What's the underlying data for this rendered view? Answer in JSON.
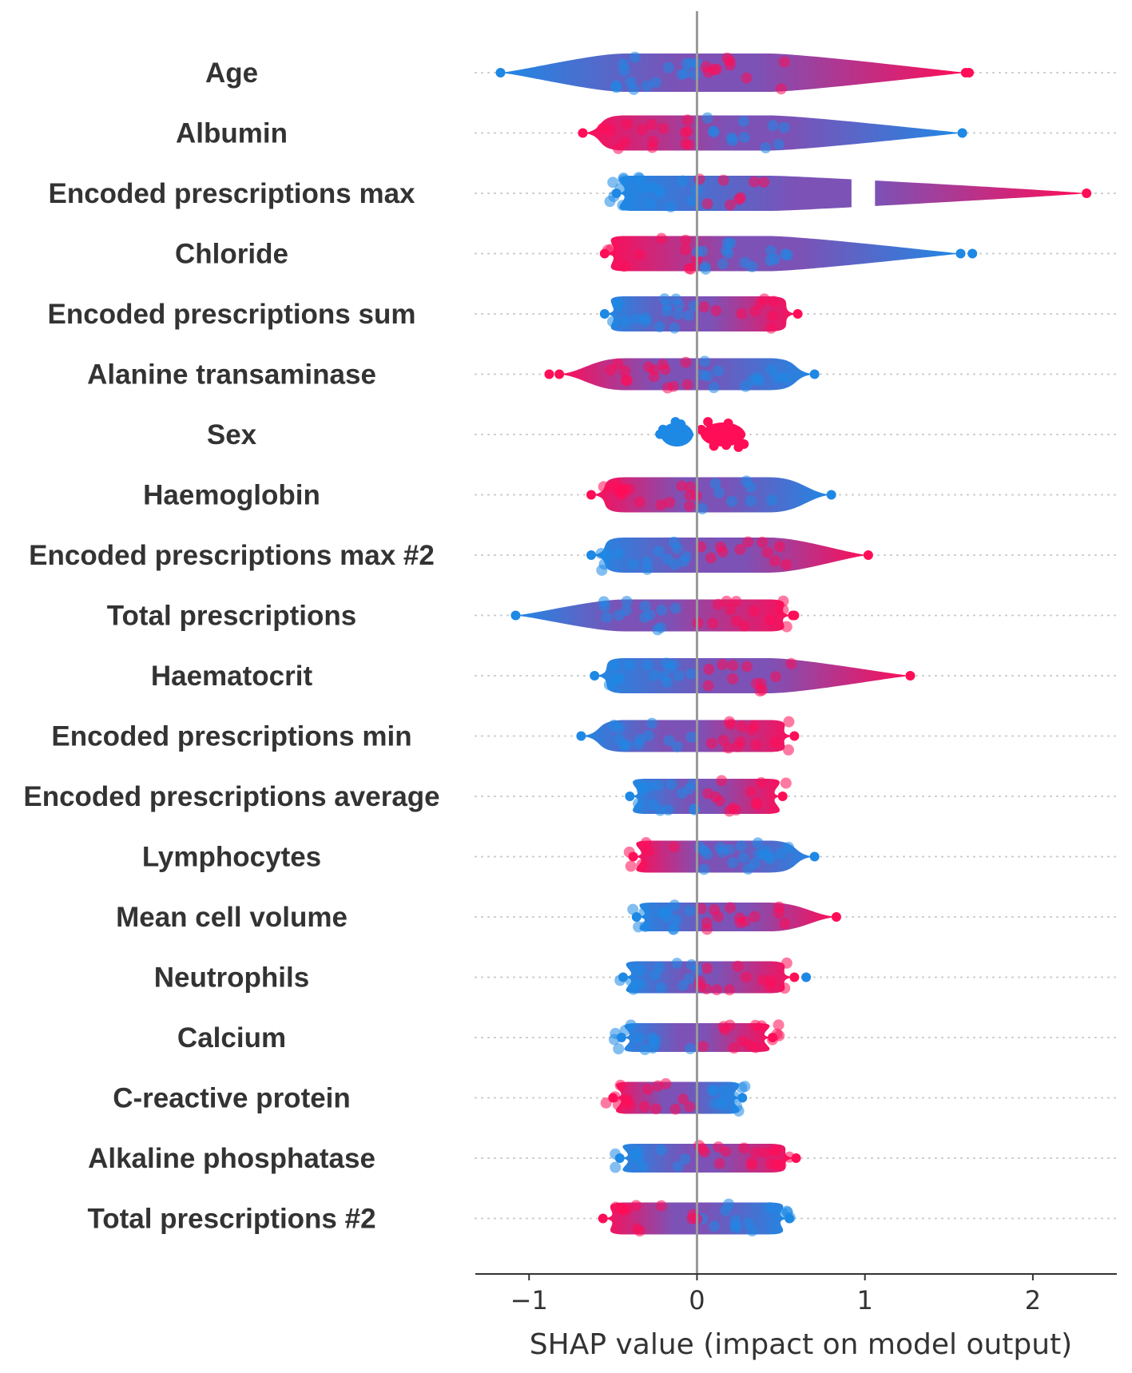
{
  "colors": {
    "low": "#1E88E5",
    "high": "#FF0D57",
    "mid": "#7C52B6",
    "zero_line": "#999999",
    "axis": "#333333",
    "dots": "#c8c8c8",
    "label": "#333333"
  },
  "chart_data": {
    "type": "beeswarm",
    "xlabel": "SHAP value (impact on model output)",
    "xlim": [
      -1.32,
      2.5
    ],
    "xticks": [
      -1,
      0,
      1,
      2
    ],
    "xtick_labels": [
      "−1",
      "0",
      "1",
      "2"
    ],
    "features": [
      {
        "name": "Age",
        "min": -1.17,
        "max": 1.6,
        "lowside": "left",
        "w": 24,
        "extreme_high": 1.62,
        "extreme_low": null
      },
      {
        "name": "Albumin",
        "min": -0.68,
        "max": 1.58,
        "lowside": "right",
        "w": 22,
        "extreme_high": null,
        "extreme_low": null
      },
      {
        "name": "Encoded prescriptions max",
        "min": -0.48,
        "max": 2.32,
        "lowside": "left",
        "w": 22,
        "extreme_high": null,
        "extreme_low": null,
        "gap": [
          0.92,
          1.06
        ]
      },
      {
        "name": "Chloride",
        "min": -0.55,
        "max": 1.57,
        "lowside": "right",
        "w": 22,
        "extreme_high": null,
        "extreme_low": 1.64
      },
      {
        "name": "Encoded prescriptions sum",
        "min": -0.55,
        "max": 0.6,
        "lowside": "left",
        "w": 22,
        "extreme_high": null,
        "extreme_low": null
      },
      {
        "name": "Alanine transaminase",
        "min": -0.82,
        "max": 0.7,
        "lowside": "right",
        "w": 20,
        "extreme_high": -0.88,
        "extreme_low": null
      },
      {
        "name": "Sex",
        "min": -0.22,
        "max": 0.29,
        "lowside": "left",
        "w": 20,
        "extreme_high": null,
        "extreme_low": null,
        "binary": true
      },
      {
        "name": "Haemoglobin",
        "min": -0.63,
        "max": 0.8,
        "lowside": "right",
        "w": 22,
        "extreme_high": null,
        "extreme_low": null
      },
      {
        "name": "Encoded prescriptions max  #2",
        "min": -0.63,
        "max": 1.02,
        "lowside": "left",
        "w": 22,
        "extreme_high": null,
        "extreme_low": null
      },
      {
        "name": "Total prescriptions",
        "min": -1.08,
        "max": 0.57,
        "lowside": "left",
        "w": 20,
        "extreme_high": 0.58,
        "extreme_low": null
      },
      {
        "name": "Haematocrit",
        "min": -0.61,
        "max": 1.27,
        "lowside": "left",
        "w": 22,
        "extreme_high": null,
        "extreme_low": null
      },
      {
        "name": "Encoded prescriptions min",
        "min": -0.69,
        "max": 0.58,
        "lowside": "left",
        "w": 20,
        "extreme_high": null,
        "extreme_low": null
      },
      {
        "name": "Encoded prescriptions average",
        "min": -0.4,
        "max": 0.51,
        "lowside": "left",
        "w": 22,
        "extreme_high": null,
        "extreme_low": null
      },
      {
        "name": "Lymphocytes",
        "min": -0.38,
        "max": 0.7,
        "lowside": "right",
        "w": 20,
        "extreme_high": null,
        "extreme_low": null
      },
      {
        "name": "Mean cell volume",
        "min": -0.36,
        "max": 0.83,
        "lowside": "left",
        "w": 18,
        "extreme_high": null,
        "extreme_low": null
      },
      {
        "name": "Neutrophils",
        "min": -0.44,
        "max": 0.58,
        "lowside": "left",
        "w": 20,
        "extreme_high": null,
        "extreme_low": 0.65
      },
      {
        "name": "Calcium",
        "min": -0.45,
        "max": 0.45,
        "lowside": "left",
        "w": 18,
        "extreme_high": null,
        "extreme_low": null
      },
      {
        "name": "C-reactive protein",
        "min": -0.5,
        "max": 0.27,
        "lowside": "right",
        "w": 20,
        "extreme_high": null,
        "extreme_low": null
      },
      {
        "name": "Alkaline phosphatase",
        "min": -0.46,
        "max": 0.59,
        "lowside": "left",
        "w": 18,
        "extreme_high": null,
        "extreme_low": null
      },
      {
        "name": "Total prescriptions #2",
        "min": -0.56,
        "max": 0.55,
        "lowside": "right",
        "w": 20,
        "extreme_high": null,
        "extreme_low": null
      }
    ]
  }
}
